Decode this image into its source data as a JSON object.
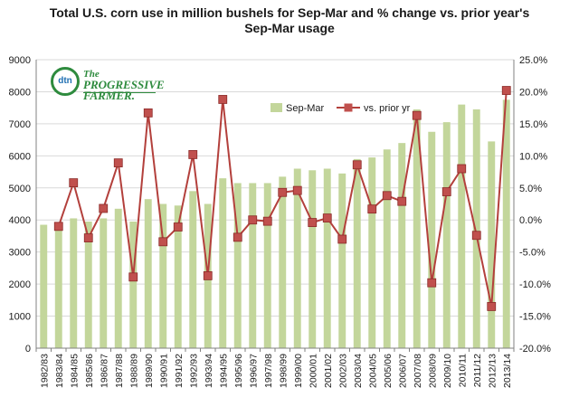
{
  "title_lines": [
    "Total U.S. corn use in million bushels for Sep-Mar and % change vs. prior year's",
    "Sep-Mar usage"
  ],
  "logo": {
    "mark_text": "dtn",
    "name_line1": "The",
    "name_line2": "PROGRESSIVE",
    "name_line3": "FARMER."
  },
  "colors": {
    "bar": "#c3d69b",
    "line": "#b3403c",
    "marker": "#c0504d",
    "grid": "#d9d9d9",
    "axis": "#808080",
    "text": "#1a1a1a"
  },
  "chart_data": {
    "type": "bar+line",
    "title": "Total U.S. corn use in million bushels for Sep-Mar and % change vs. prior year's Sep-Mar usage",
    "categories": [
      "1982/83",
      "1983/84",
      "1984/85",
      "1985/86",
      "1986/87",
      "1987/88",
      "1988/89",
      "1989/90",
      "1990/91",
      "1991/92",
      "1992/93",
      "1993/94",
      "1994/95",
      "1995/96",
      "1996/97",
      "1997/98",
      "1998/99",
      "1999/00",
      "2000/01",
      "2001/02",
      "2002/03",
      "2003/04",
      "2004/05",
      "2005/06",
      "2006/07",
      "2007/08",
      "2008/09",
      "2009/10",
      "2010/11",
      "2011/12",
      "2012/13",
      "2013/14"
    ],
    "series": [
      {
        "name": "Sep-Mar",
        "type": "bar",
        "axis": "left",
        "values": [
          3850,
          3800,
          4050,
          3950,
          4050,
          4350,
          3950,
          4650,
          4500,
          4450,
          4900,
          4500,
          5300,
          5150,
          5150,
          5150,
          5350,
          5600,
          5550,
          5600,
          5450,
          5900,
          5950,
          6200,
          6400,
          7450,
          6750,
          7050,
          7600,
          7450,
          6450,
          7750
        ]
      },
      {
        "name": "vs. prior yr",
        "type": "line",
        "axis": "right",
        "values": [
          null,
          -1.0,
          5.8,
          -2.8,
          1.8,
          8.9,
          -8.9,
          16.7,
          -3.4,
          -1.1,
          10.2,
          -8.7,
          18.8,
          -2.7,
          0.0,
          -0.2,
          4.3,
          4.6,
          -0.4,
          0.3,
          -3.0,
          8.6,
          1.7,
          3.8,
          2.9,
          16.3,
          -9.8,
          4.4,
          8.0,
          -2.4,
          -13.5,
          20.2
        ]
      }
    ],
    "y_left": {
      "min": 0,
      "max": 9000,
      "step": 1000,
      "ticks": [
        "0",
        "1000",
        "2000",
        "3000",
        "4000",
        "5000",
        "6000",
        "7000",
        "8000",
        "9000"
      ]
    },
    "y_right": {
      "min": -20,
      "max": 25,
      "step": 5,
      "ticks": [
        "-20.0%",
        "-15.0%",
        "-10.0%",
        "-5.0%",
        "0.0%",
        "5.0%",
        "10.0%",
        "15.0%",
        "20.0%",
        "25.0%"
      ]
    },
    "grid": true,
    "legend_position": "top-right"
  }
}
